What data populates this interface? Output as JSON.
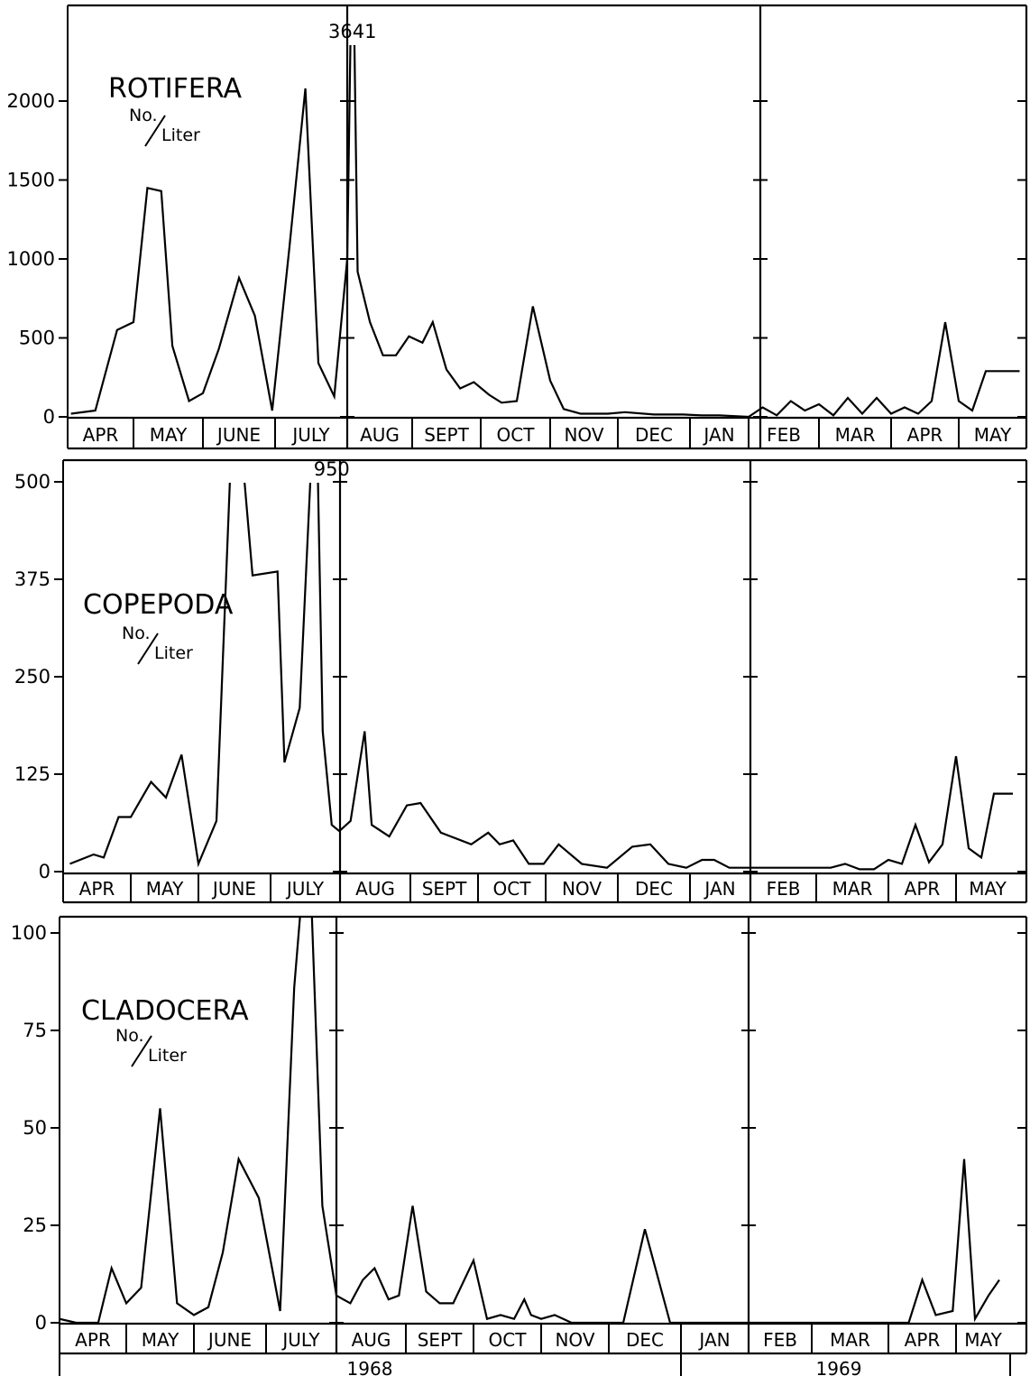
{
  "chart_data": [
    {
      "type": "line",
      "title": "ROTIFERA",
      "unit_numerator": "No.",
      "unit_denominator": "Liter",
      "yticks": [
        0,
        500,
        1000,
        1500,
        2000
      ],
      "ylim": [
        0,
        2500
      ],
      "months": [
        "APR",
        "MAY",
        "JUNE",
        "JULY",
        "AUG",
        "SEPT",
        "OCT",
        "NOV",
        "DEC",
        "JAN",
        "FEB",
        "MAR",
        "APR",
        "MAY"
      ],
      "annotation": {
        "text": "3641",
        "x": 4.08,
        "value": 3641
      },
      "x": [
        0.05,
        0.42,
        0.75,
        1.0,
        1.2,
        1.4,
        1.56,
        1.8,
        2.0,
        2.22,
        2.5,
        2.72,
        2.96,
        3.2,
        3.42,
        3.6,
        3.82,
        4.0,
        4.08,
        4.16,
        4.35,
        4.55,
        4.75,
        4.95,
        5.15,
        5.3,
        5.5,
        5.7,
        5.9,
        6.12,
        6.3,
        6.52,
        6.75,
        7.0,
        7.2,
        7.45,
        7.62,
        7.85,
        8.1,
        8.5,
        8.9,
        9.2,
        9.5,
        10.0,
        10.2,
        10.4,
        10.6,
        10.8,
        11.0,
        11.2,
        11.4,
        11.6,
        11.8,
        12.0,
        12.2,
        12.4,
        12.6,
        12.8,
        13.0,
        13.2,
        13.4,
        13.6,
        13.9
      ],
      "y": [
        20,
        40,
        550,
        600,
        1450,
        1430,
        450,
        100,
        150,
        430,
        880,
        640,
        40,
        1080,
        2080,
        340,
        130,
        1000,
        3641,
        920,
        600,
        390,
        390,
        510,
        470,
        600,
        300,
        180,
        220,
        140,
        90,
        100,
        700,
        230,
        50,
        20,
        20,
        20,
        30,
        15,
        15,
        10,
        10,
        0,
        60,
        10,
        100,
        40,
        80,
        10,
        120,
        20,
        120,
        20,
        60,
        20,
        100,
        600,
        100,
        40,
        290,
        290,
        290
      ],
      "year_labels": []
    },
    {
      "type": "line",
      "title": "COPEPODA",
      "unit_numerator": "No.",
      "unit_denominator": "Liter",
      "yticks": [
        0,
        125,
        250,
        375,
        500
      ],
      "ylim": [
        0,
        500
      ],
      "months": [
        "APR",
        "MAY",
        "JUNE",
        "JULY",
        "AUG",
        "SEPT",
        "OCT",
        "NOV",
        "DEC",
        "JAN",
        "FEB",
        "MAR",
        "APR",
        "MAY"
      ],
      "annotation": {
        "text": "950",
        "x": 3.88,
        "value": 950
      },
      "x": [
        0.1,
        0.45,
        0.6,
        0.82,
        1.0,
        1.3,
        1.52,
        1.75,
        2.0,
        2.25,
        2.5,
        2.75,
        3.1,
        3.2,
        3.42,
        3.65,
        3.75,
        3.88,
        3.99,
        4.15,
        4.35,
        4.45,
        4.7,
        4.95,
        5.15,
        5.45,
        5.6,
        5.9,
        6.15,
        6.32,
        6.52,
        6.75,
        6.97,
        7.18,
        7.5,
        7.85,
        8.2,
        8.45,
        8.7,
        8.95,
        9.2,
        9.4,
        9.65,
        9.95,
        10.0,
        10.3,
        10.6,
        10.9,
        11.2,
        11.4,
        11.6,
        11.8,
        12.0,
        12.2,
        12.4,
        12.6,
        12.8,
        13.0,
        13.2,
        13.4,
        13.6,
        13.9
      ],
      "y": [
        10,
        22,
        18,
        70,
        70,
        115,
        95,
        150,
        10,
        65,
        510,
        380,
        385,
        140,
        210,
        950,
        180,
        60,
        52,
        65,
        180,
        60,
        45,
        85,
        88,
        50,
        45,
        35,
        50,
        35,
        40,
        10,
        10,
        35,
        10,
        5,
        32,
        35,
        10,
        5,
        15,
        15,
        5,
        5,
        5,
        5,
        5,
        5,
        5,
        10,
        3,
        3,
        15,
        10,
        60,
        12,
        35,
        148,
        30,
        18,
        100,
        100
      ],
      "year_labels": []
    },
    {
      "type": "line",
      "title": "CLADOCERA",
      "unit_numerator": "No.",
      "unit_denominator": "Liter",
      "yticks": [
        0,
        25,
        50,
        75,
        100
      ],
      "ylim": [
        0,
        100
      ],
      "months": [
        "APR",
        "MAY",
        "JUNE",
        "JULY",
        "AUG",
        "SEPT",
        "OCT",
        "NOV",
        "DEC",
        "JAN",
        "FEB",
        "MAR",
        "APR",
        "MAY"
      ],
      "annotation": null,
      "x": [
        0.0,
        0.25,
        0.58,
        0.78,
        1.0,
        1.22,
        1.5,
        1.75,
        2.0,
        2.2,
        2.4,
        2.62,
        2.9,
        3.2,
        3.4,
        3.6,
        3.8,
        4.0,
        4.2,
        4.38,
        4.55,
        4.75,
        4.9,
        5.1,
        5.3,
        5.5,
        5.7,
        6.0,
        6.2,
        6.4,
        6.6,
        6.75,
        6.85,
        7.0,
        7.2,
        7.45,
        7.7,
        8.2,
        8.5,
        8.85,
        9.2,
        9.5,
        10.0,
        10.5,
        11.0,
        12.0,
        12.3,
        12.5,
        12.7,
        12.95,
        13.15,
        13.35,
        13.6,
        13.8
      ],
      "y": [
        1,
        0,
        0,
        14,
        5,
        9,
        55,
        5,
        2,
        4,
        18,
        42,
        32,
        3,
        86,
        101,
        30,
        7,
        5,
        11,
        14,
        6,
        7,
        30,
        8,
        5,
        5,
        16,
        1,
        2,
        1,
        6,
        2,
        1,
        2,
        0,
        0,
        0,
        24,
        0,
        0,
        0,
        0,
        0,
        0,
        0,
        0,
        11,
        2,
        3,
        42,
        1,
        7,
        11
      ],
      "year_labels": [
        "1968",
        "1969"
      ]
    }
  ]
}
